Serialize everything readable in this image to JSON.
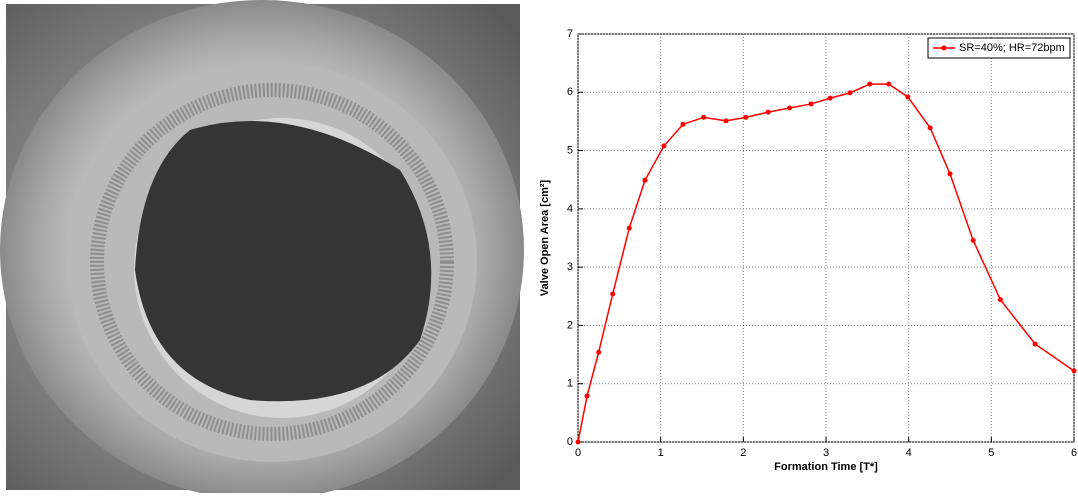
{
  "chart_data": {
    "type": "line",
    "x_label": "Formation Time [T*]",
    "y_label": "Valve Open Area [cm²]",
    "x": [
      0,
      0.11,
      0.25,
      0.42,
      0.62,
      0.81,
      1.04,
      1.27,
      1.52,
      1.79,
      2.03,
      2.3,
      2.56,
      2.82,
      3.05,
      3.29,
      3.53,
      3.76,
      3.99,
      4.26,
      4.5,
      4.78,
      5.11,
      5.53,
      6.0
    ],
    "series": [
      {
        "name": "SR=40%; HR=72bpm",
        "color": "#ff0000",
        "values": [
          0,
          0.79,
          1.54,
          2.54,
          3.67,
          4.49,
          5.08,
          5.45,
          5.57,
          5.51,
          5.57,
          5.66,
          5.73,
          5.8,
          5.9,
          5.99,
          6.14,
          6.14,
          5.92,
          5.39,
          4.6,
          3.46,
          2.44,
          1.68,
          1.22
        ]
      }
    ],
    "xlim": [
      0,
      6
    ],
    "xticks": [
      0,
      1,
      2,
      3,
      4,
      5,
      6
    ],
    "ylim": [
      0,
      7
    ],
    "yticks": [
      0,
      1,
      2,
      3,
      4,
      5,
      6,
      7
    ],
    "grid": true,
    "legend": "top-right"
  }
}
